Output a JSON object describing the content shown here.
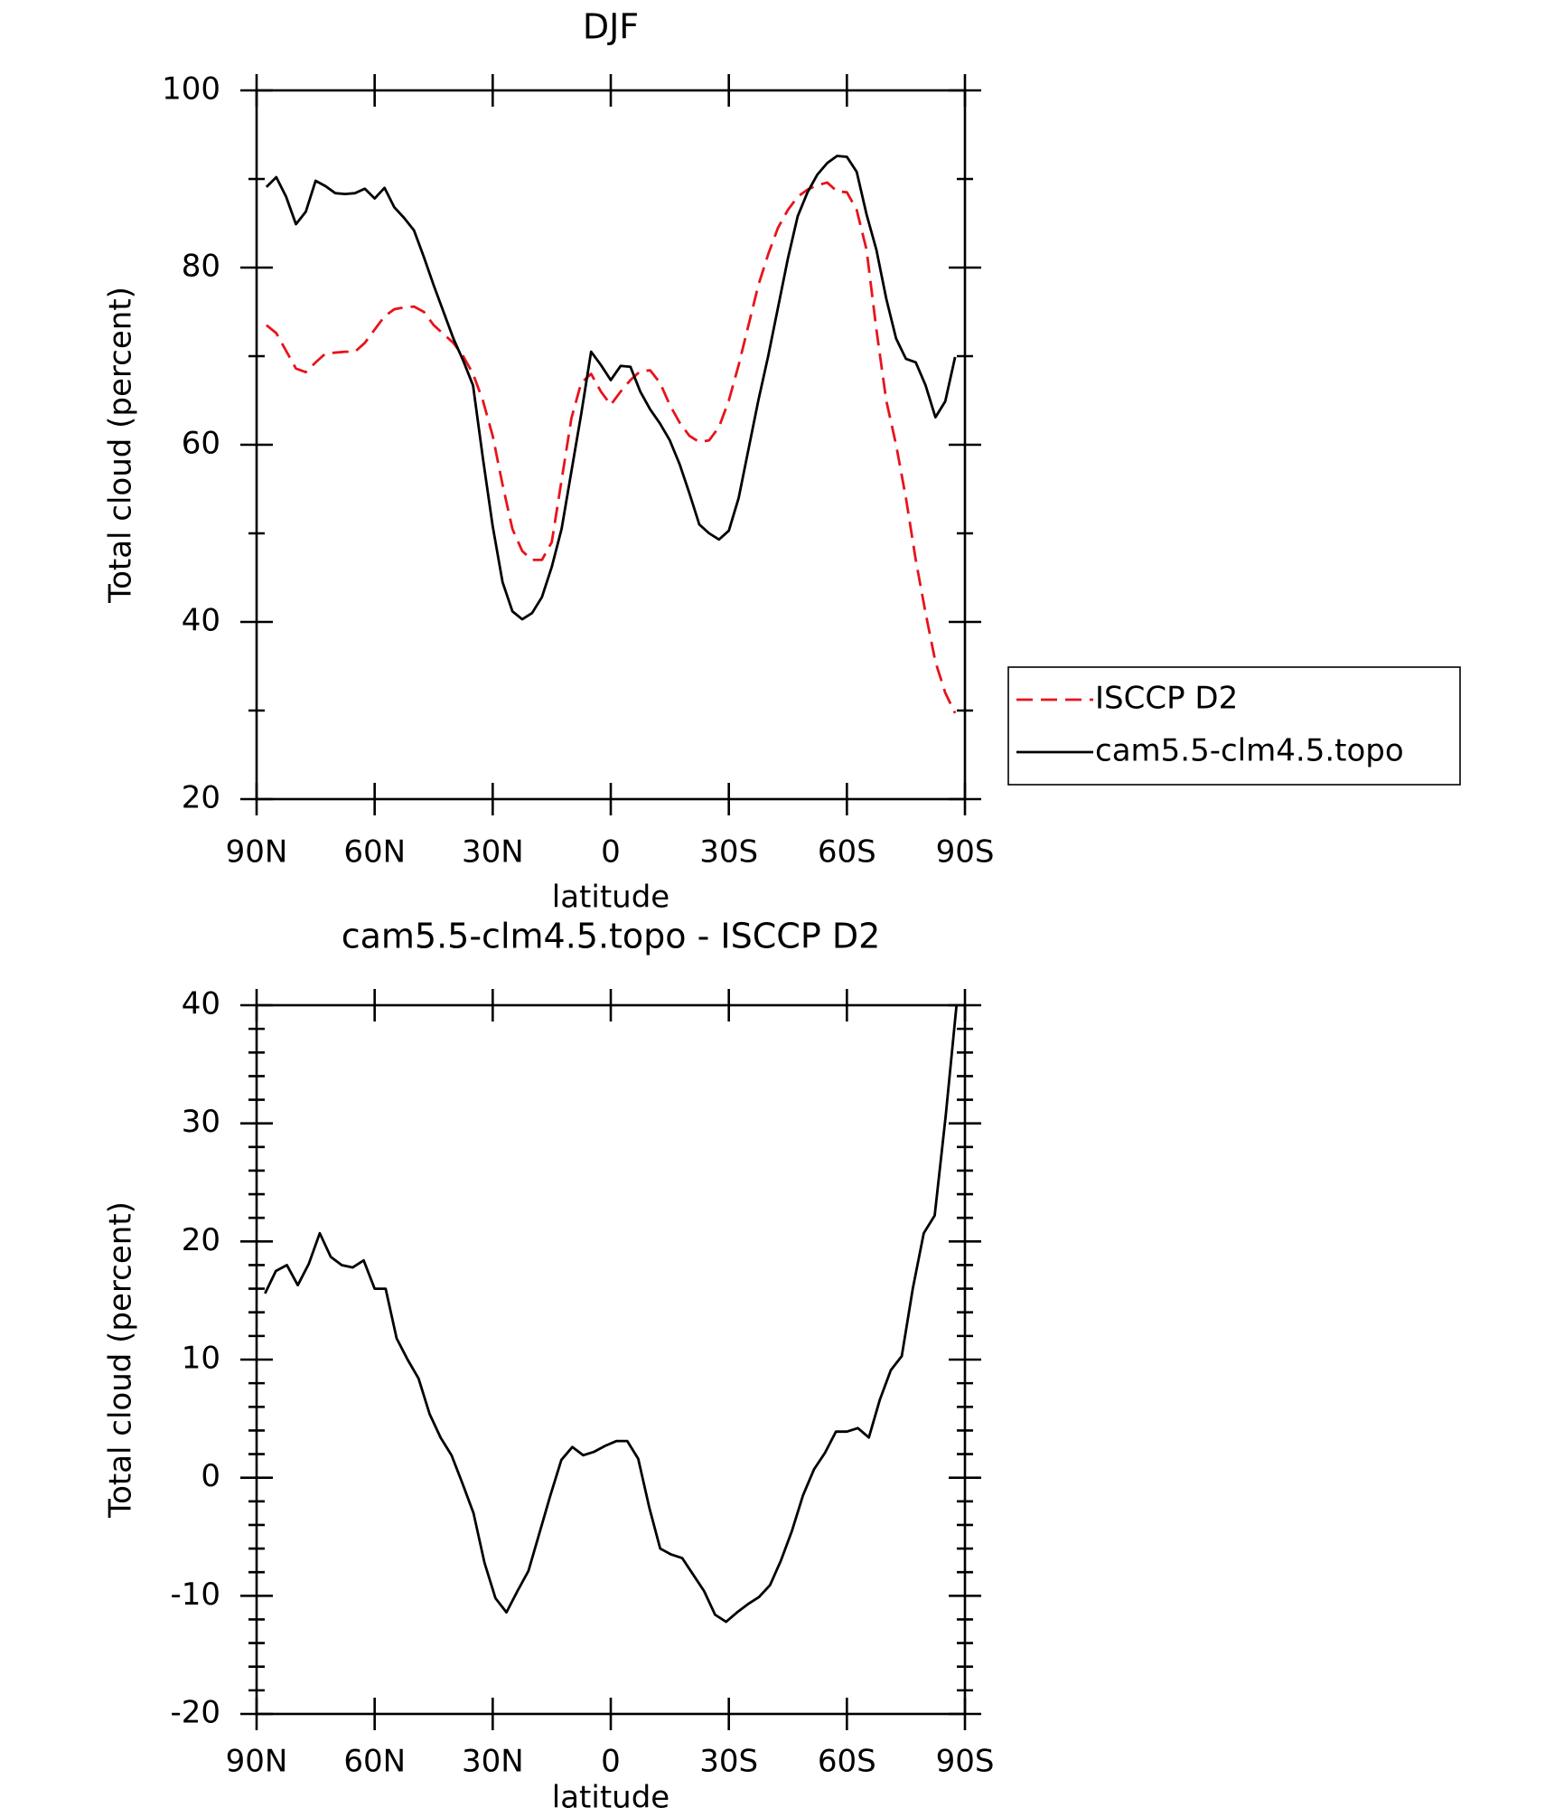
{
  "chart_data": [
    {
      "type": "line",
      "title": "DJF",
      "xlabel": "latitude",
      "ylabel": "Total cloud (percent)",
      "x": [
        87.5,
        85,
        82.5,
        80,
        77.5,
        75,
        72.5,
        70,
        67.5,
        65,
        62.5,
        60,
        57.5,
        55,
        52.5,
        50,
        47.5,
        45,
        42.5,
        40,
        37.5,
        35,
        32.5,
        30,
        27.5,
        25,
        22.5,
        20,
        17.5,
        15,
        12.5,
        10,
        7.5,
        5,
        2.5,
        0,
        -2.5,
        -5,
        -7.5,
        -10,
        -12.5,
        -15,
        -17.5,
        -20,
        -22.5,
        -25,
        -27.5,
        -30,
        -32.5,
        -35,
        -37.5,
        -40,
        -42.5,
        -45,
        -47.5,
        -50,
        -52.5,
        -55,
        -57.5,
        -60,
        -62.5,
        -65,
        -67.5,
        -70,
        -72.5,
        -75,
        -77.5,
        -80,
        -82.5,
        -85,
        -87.5
      ],
      "series": [
        {
          "name": "ISCCP D2",
          "color": "#e8131b",
          "style": "dashed",
          "values": [
            73.5,
            72.6,
            70.6,
            68.6,
            68.2,
            69.3,
            70.3,
            70.4,
            70.5,
            70.5,
            71.5,
            73,
            74.5,
            75.3,
            75.5,
            75.6,
            75,
            73.5,
            72.5,
            71.5,
            70,
            68,
            65,
            61,
            55.5,
            50.5,
            48,
            47,
            47,
            49,
            56,
            63,
            67,
            68,
            66,
            64.5,
            66,
            67.3,
            68.3,
            68.4,
            67,
            64.5,
            62.5,
            61,
            60.3,
            60.5,
            62,
            65,
            69,
            73.5,
            78,
            81.5,
            84.5,
            86.5,
            88,
            88.8,
            89.3,
            89.6,
            88.6,
            88.5,
            86.5,
            82,
            73,
            65,
            60,
            54,
            47,
            41,
            35.5,
            32,
            29.7
          ]
        },
        {
          "name": "cam5.5-clm4.5.topo",
          "color": "#000000",
          "style": "solid",
          "values": [
            89.1,
            90.2,
            88.0,
            84.9,
            86.3,
            89.8,
            89.2,
            88.4,
            88.3,
            88.4,
            88.9,
            87.8,
            89.0,
            86.8,
            85.6,
            84.2,
            81.2,
            78,
            75,
            72,
            69.5,
            66.7,
            58.5,
            50.8,
            44.5,
            41.2,
            40.3,
            41.0,
            42.8,
            46.2,
            50.5,
            57,
            63.5,
            70.5,
            69,
            67.3,
            68.9,
            68.8,
            66,
            64,
            62.4,
            60.5,
            57.8,
            54.5,
            51,
            50,
            49.3,
            50.3,
            54,
            59.5,
            65,
            70,
            75.5,
            81,
            85.8,
            88.5,
            90.5,
            91.8,
            92.6,
            92.5,
            90.8,
            86,
            82,
            76.5,
            72,
            69.7,
            69.3,
            66.7,
            63.1,
            64.9,
            69.9
          ]
        }
      ],
      "xlim": [
        90,
        -90
      ],
      "xticks": [
        {
          "value": 90,
          "label": "90N"
        },
        {
          "value": 60,
          "label": "60N"
        },
        {
          "value": 30,
          "label": "30N"
        },
        0,
        {
          "value": -30,
          "label": "30S"
        },
        {
          "value": -60,
          "label": "60S"
        },
        {
          "value": -90,
          "label": "90S"
        }
      ],
      "ylim": [
        20,
        100
      ],
      "yticks": [
        20,
        40,
        60,
        80,
        100
      ],
      "yminorticks": [
        30,
        50,
        70,
        90
      ],
      "legend": "right"
    },
    {
      "type": "line",
      "title": "cam5.5-clm4.5.topo - ISCCP D2",
      "xlabel": "latitude",
      "ylabel": "Total cloud (percent)",
      "x": [
        87.86,
        85.1,
        82.31,
        79.53,
        76.74,
        73.95,
        71.16,
        68.37,
        65.58,
        62.79,
        60,
        57.21,
        54.42,
        51.63,
        48.84,
        46.04,
        43.25,
        40.46,
        37.67,
        34.88,
        32.09,
        29.3,
        26.51,
        23.72,
        20.93,
        18.14,
        15.35,
        12.56,
        9.77,
        6.98,
        4.19,
        1.4,
        -1.4,
        -4.19,
        -6.98,
        -9.77,
        -12.56,
        -15.35,
        -18.14,
        -20.93,
        -23.72,
        -26.51,
        -29.3,
        -32.09,
        -34.88,
        -37.67,
        -40.46,
        -43.25,
        -46.04,
        -48.84,
        -51.63,
        -54.42,
        -57.21,
        -60,
        -62.79,
        -65.58,
        -68.37,
        -71.16,
        -73.95,
        -76.74,
        -79.53,
        -82.31,
        -85.1,
        -87.86
      ],
      "series": [
        {
          "color": "#000000",
          "style": "solid",
          "values": [
            15.6,
            17.5,
            18,
            16.3,
            18.1,
            20.7,
            18.7,
            18,
            17.8,
            18.4,
            16,
            16,
            11.8,
            10,
            8.4,
            5.4,
            3.4,
            1.9,
            -0.5,
            -3,
            -7.2,
            -10.2,
            -11.4,
            -9.6,
            -7.9,
            -4.7,
            -1.5,
            1.5,
            2.6,
            1.9,
            2.2,
            2.7,
            3.1,
            3.1,
            1.6,
            -2.5,
            -6,
            -6.5,
            -6.8,
            -8.2,
            -9.6,
            -11.6,
            -12.2,
            -11.4,
            -10.7,
            -10.1,
            -9.1,
            -7,
            -4.5,
            -1.5,
            0.7,
            2.1,
            3.9,
            3.9,
            4.2,
            3.4,
            6.6,
            9.1,
            10.3,
            16,
            20.7,
            22.2,
            30.6,
            40
          ]
        }
      ],
      "xlim": [
        90,
        -90
      ],
      "xticks": [
        {
          "value": 90,
          "label": "90N"
        },
        {
          "value": 60,
          "label": "60N"
        },
        {
          "value": 30,
          "label": "30N"
        },
        0,
        {
          "value": -30,
          "label": "30S"
        },
        {
          "value": -60,
          "label": "60S"
        },
        {
          "value": -90,
          "label": "90S"
        }
      ],
      "ylim": [
        -20,
        40
      ],
      "yticks": [
        -20,
        -10,
        0,
        10,
        20,
        30,
        40
      ],
      "yminorticks": [
        -18,
        -16,
        -14,
        -12,
        -8,
        -6,
        -4,
        -2,
        2,
        4,
        6,
        8,
        12,
        14,
        16,
        18,
        22,
        24,
        26,
        28,
        32,
        34,
        36,
        38
      ]
    }
  ]
}
